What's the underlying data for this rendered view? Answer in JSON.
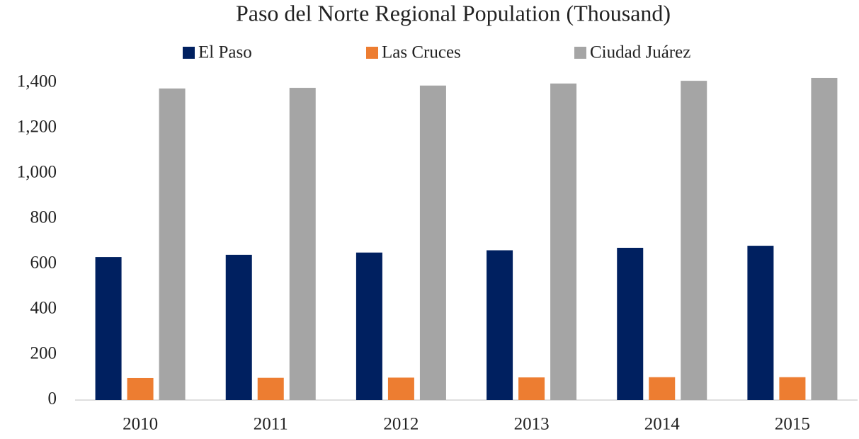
{
  "chart_data": {
    "type": "bar",
    "title": "Paso del Norte Regional Population (Thousand)",
    "categories": [
      "2010",
      "2011",
      "2012",
      "2013",
      "2014",
      "2015"
    ],
    "series": [
      {
        "name": "El Paso",
        "color": "#002060",
        "values": [
          631,
          641,
          651,
          661,
          672,
          681
        ]
      },
      {
        "name": "Las Cruces",
        "color": "#ed7d31",
        "values": [
          97,
          98,
          99,
          100,
          101,
          101
        ]
      },
      {
        "name": "Ciudad Juárez",
        "color": "#a5a5a5",
        "values": [
          1375,
          1378,
          1388,
          1397,
          1409,
          1422
        ]
      }
    ],
    "ylim": [
      0,
      1400
    ],
    "yticks": [
      0,
      200,
      400,
      600,
      800,
      {
        "value": 1000,
        "label": "1,000"
      },
      {
        "value": 1200,
        "label": "1,200"
      },
      {
        "value": 1400,
        "label": "1,400"
      }
    ],
    "grid": false,
    "legend": "top"
  }
}
